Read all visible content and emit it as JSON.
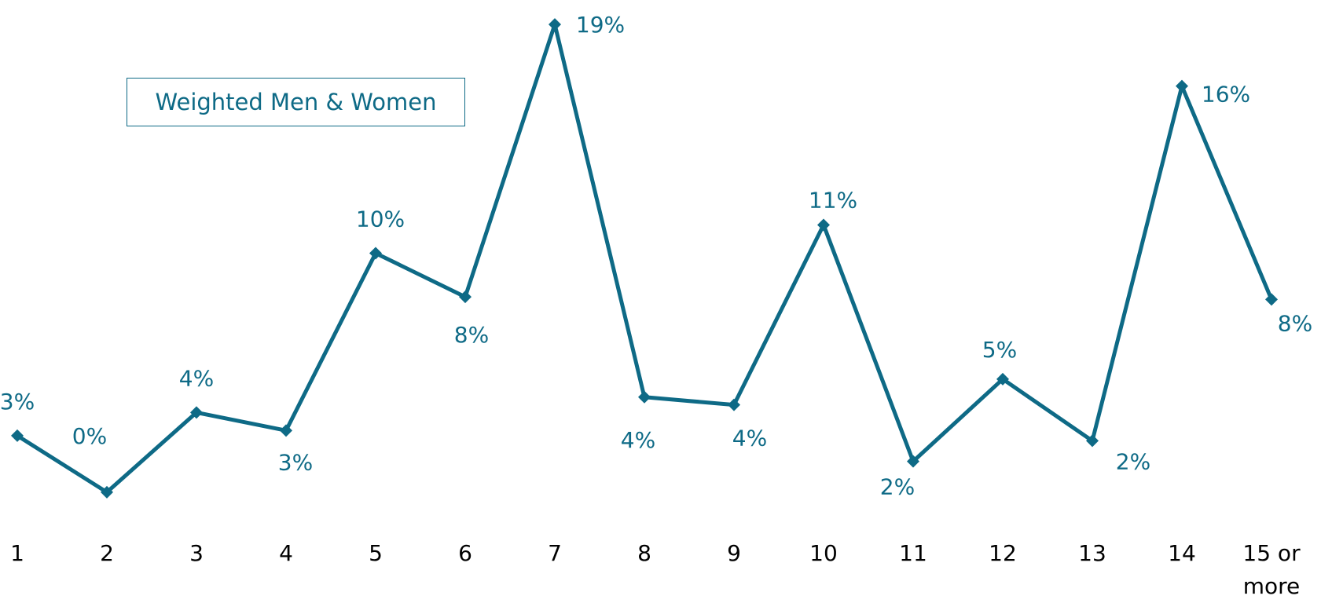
{
  "chart_data": {
    "type": "line",
    "categories": [
      "1",
      "2",
      "3",
      "4",
      "5",
      "6",
      "7",
      "8",
      "9",
      "10",
      "11",
      "12",
      "13",
      "14",
      "15 or more"
    ],
    "series": [
      {
        "name": "Weighted Men & Women",
        "color": "#0e6a86",
        "values": [
          2.6,
          0.4,
          3.5,
          2.8,
          9.7,
          8.0,
          18.6,
          4.1,
          3.8,
          10.8,
          1.6,
          4.8,
          2.4,
          16.2,
          7.9
        ],
        "value_labels": [
          "3%",
          "0%",
          "4%",
          "3%",
          "10%",
          "8%",
          "19%",
          "4%",
          "4%",
          "11%",
          "2%",
          "5%",
          "2%",
          "16%",
          "8%"
        ]
      }
    ],
    "ylim": [
      0,
      19
    ],
    "legend": "upper left"
  }
}
